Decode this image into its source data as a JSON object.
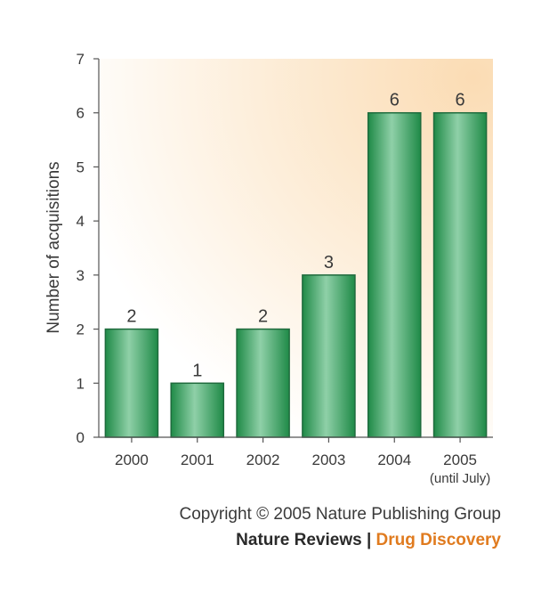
{
  "chart_data": {
    "type": "bar",
    "ylabel": "Number of acquisitions",
    "xlabel": "",
    "categories": [
      "2000",
      "2001",
      "2002",
      "2003",
      "2004",
      "2005"
    ],
    "category_sublabels": [
      "",
      "",
      "",
      "",
      "",
      "(until July)"
    ],
    "values": [
      2,
      1,
      2,
      3,
      6,
      6
    ],
    "data_labels": [
      "2",
      "1",
      "2",
      "3",
      "6",
      "6"
    ],
    "ylim": [
      0,
      7
    ],
    "yticks": [
      "0",
      "1",
      "2",
      "3",
      "4",
      "5",
      "6",
      "7"
    ],
    "grid": false,
    "colors": {
      "bar": "#2e9a5a",
      "bar_edge": "#1f6b3d",
      "background_warm": "#fbdcb4"
    }
  },
  "footer": {
    "copyright": "Copyright © 2005 Nature Publishing Group",
    "brand_primary": "Nature Reviews",
    "brand_separator": " | ",
    "brand_secondary": "Drug Discovery"
  }
}
